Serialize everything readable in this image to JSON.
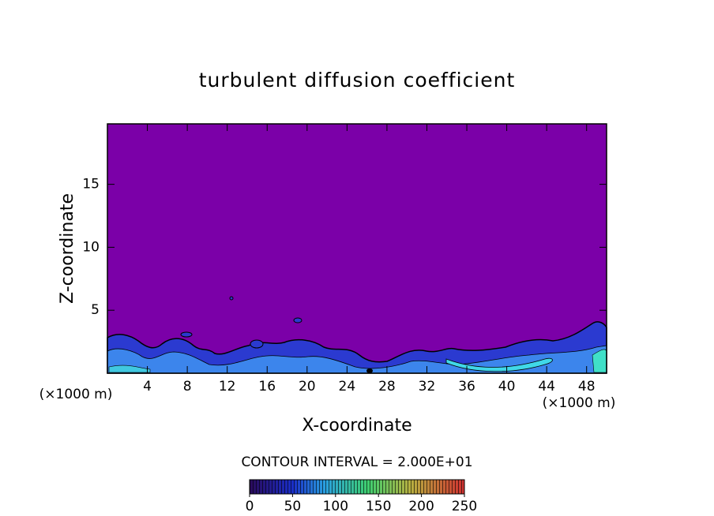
{
  "chart_data": {
    "type": "contour",
    "title": "turbulent diffusion coefficient",
    "x_label": "X-coordinate",
    "y_label": "Z-coordinate",
    "x_unit": "(×1000 m)",
    "xlim": [
      0,
      50
    ],
    "xticks": [
      4,
      8,
      12,
      16,
      20,
      24,
      28,
      32,
      36,
      40,
      44,
      48
    ],
    "ylim": [
      0,
      19.8
    ],
    "yticks": [
      5,
      10,
      15
    ],
    "background_color": "#7b00a8",
    "contour_interval_label": "CONTOUR INTERVAL = 2.000E+01",
    "colorbar": {
      "lim": [
        0,
        250
      ],
      "ticks": [
        0,
        50,
        100,
        150,
        200,
        250
      ]
    }
  }
}
